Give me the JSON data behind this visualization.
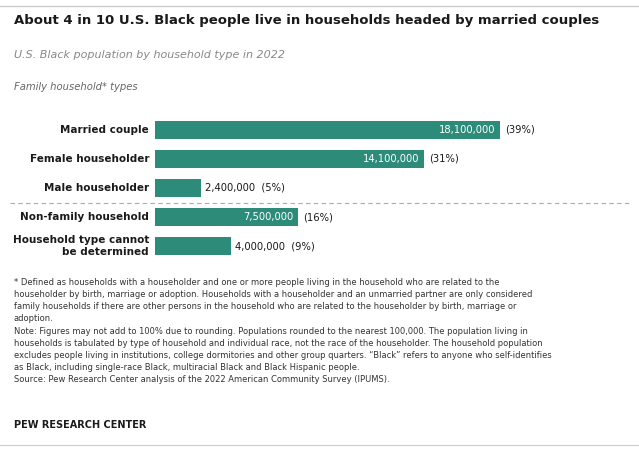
{
  "title": "About 4 in 10 U.S. Black people live in households headed by married couples",
  "subtitle": "U.S. Black population by household type in 2022",
  "section_label": "Family household* types",
  "categories": [
    "Married couple",
    "Female householder",
    "Male householder",
    "Non-family household",
    "Household type cannot\nbe determined"
  ],
  "values": [
    18100000,
    14100000,
    2400000,
    7500000,
    4000000
  ],
  "labels": [
    "18,100,000",
    "14,100,000",
    "2,400,000",
    "7,500,000",
    "4,000,000"
  ],
  "percentages": [
    "(39%)",
    "(31%)",
    "(5%)",
    "(16%)",
    "(9%)"
  ],
  "bar_color": "#2d8b7a",
  "background_color": "#ffffff",
  "text_color": "#1a1a1a",
  "gray_text": "#666666",
  "footnote_color": "#333333",
  "footnote_lines": [
    "* Defined as households with a householder and one or more people living in the household who are related to the",
    "householder by birth, marriage or adoption. Households with a householder and an unmarried partner are only considered",
    "family households if there are other persons in the household who are related to the householder by birth, marriage or",
    "adoption.",
    "Note: Figures may not add to 100% due to rounding. Populations rounded to the nearest 100,000. The population living in",
    "households is tabulated by type of household and individual race, not the race of the householder. The household population",
    "excludes people living in institutions, college dormitories and other group quarters. “Black” refers to anyone who self-identifies",
    "as Black, including single-race Black, multiracial Black and Black Hispanic people.",
    "Source: Pew Research Center analysis of the 2022 American Community Survey (IPUMS)."
  ],
  "source_label": "PEW RESEARCH CENTER",
  "max_value": 18100000,
  "top_border_color": "#cccccc",
  "divider_color": "#aaaaaa",
  "bottom_border_color": "#cccccc"
}
